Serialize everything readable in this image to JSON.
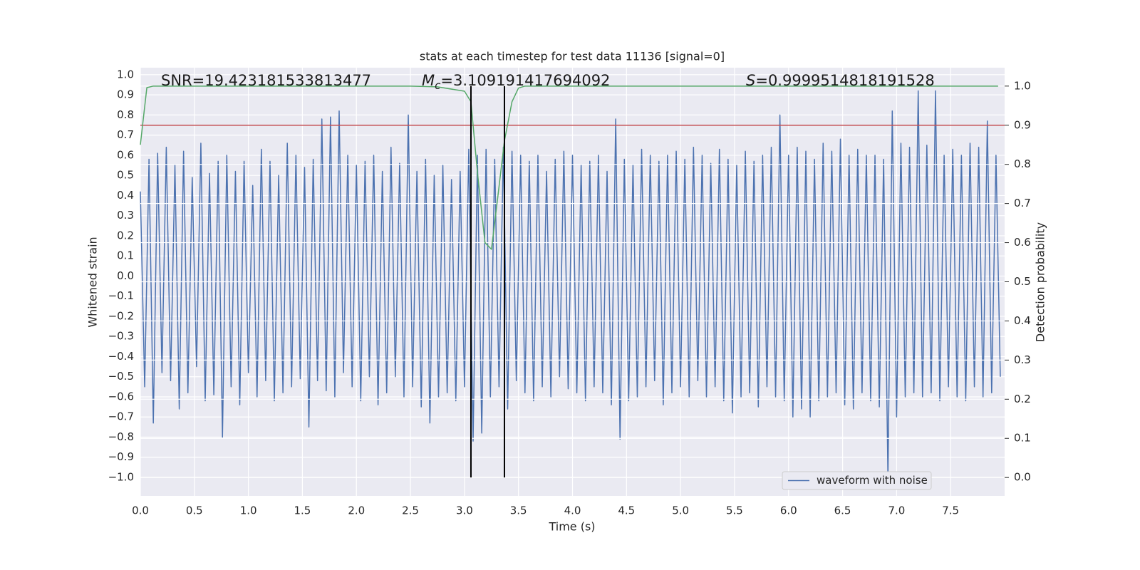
{
  "chart_data": {
    "type": "line",
    "title": "stats at each timestep for test data 11136 [signal=0]",
    "xlabel": "Time (s)",
    "ylabel": "Whitened strain",
    "y2label": "Detection probability",
    "xlim": [
      0,
      8
    ],
    "ylim": [
      -1.092,
      1.035
    ],
    "y2lim": [
      -0.047,
      1.047
    ],
    "xticks": [
      {
        "value": 0,
        "label": "0.0"
      },
      0.5,
      {
        "value": 1,
        "label": "1.0"
      },
      1.5,
      {
        "value": 2,
        "label": "2.0"
      },
      2.5,
      {
        "value": 3,
        "label": "3.0"
      },
      3.5,
      {
        "value": 4,
        "label": "4.0"
      },
      4.5,
      {
        "value": 5,
        "label": "5.0"
      },
      5.5,
      {
        "value": 6,
        "label": "6.0"
      },
      6.5,
      {
        "value": 7,
        "label": "7.0"
      },
      7.5
    ],
    "yticks": [
      {
        "value": 1,
        "label": "1.0"
      },
      0.9,
      0.8,
      0.7,
      0.6,
      0.5,
      0.4,
      0.3,
      0.2,
      0.1,
      {
        "value": 0,
        "label": "0.0"
      },
      {
        "value": -0.1,
        "label": "−0.1"
      },
      {
        "value": -0.2,
        "label": "−0.2"
      },
      {
        "value": -0.3,
        "label": "−0.3"
      },
      {
        "value": -0.4,
        "label": "−0.4"
      },
      {
        "value": -0.5,
        "label": "−0.5"
      },
      {
        "value": -0.6,
        "label": "−0.6"
      },
      {
        "value": -0.7,
        "label": "−0.7"
      },
      {
        "value": -0.8,
        "label": "−0.8"
      },
      {
        "value": -0.9,
        "label": "−0.9"
      },
      {
        "value": -1,
        "label": "−1.0"
      }
    ],
    "y2ticks": [
      {
        "value": 0,
        "label": "0.0"
      },
      0.1,
      0.2,
      0.3,
      0.4,
      0.5,
      0.6,
      0.7,
      0.8,
      0.9,
      {
        "value": 1,
        "label": "1.0"
      }
    ],
    "grid": true,
    "legend": "lower right",
    "series": [
      {
        "name": "waveform with noise",
        "color": "#4c72b0",
        "x": [
          0,
          0.04,
          0.08,
          0.12,
          0.16,
          0.2,
          0.24,
          0.28,
          0.32,
          0.36,
          0.4,
          0.44,
          0.48,
          0.52,
          0.56,
          0.6,
          0.64,
          0.68,
          0.72,
          0.76,
          0.8,
          0.84,
          0.88,
          0.92,
          0.96,
          1,
          1.04,
          1.08,
          1.12,
          1.16,
          1.2,
          1.24,
          1.28,
          1.32,
          1.36,
          1.4,
          1.44,
          1.48,
          1.52,
          1.56,
          1.6,
          1.64,
          1.68,
          1.72,
          1.76,
          1.8,
          1.84,
          1.88,
          1.92,
          1.96,
          2,
          2.04,
          2.08,
          2.12,
          2.16,
          2.2,
          2.24,
          2.28,
          2.32,
          2.36,
          2.4,
          2.44,
          2.48,
          2.52,
          2.56,
          2.6,
          2.64,
          2.68,
          2.72,
          2.76,
          2.8,
          2.84,
          2.88,
          2.92,
          2.96,
          3,
          3.04,
          3.08,
          3.12,
          3.16,
          3.2,
          3.24,
          3.28,
          3.32,
          3.36,
          3.4,
          3.44,
          3.48,
          3.52,
          3.56,
          3.6,
          3.64,
          3.68,
          3.72,
          3.76,
          3.8,
          3.84,
          3.88,
          3.92,
          3.96,
          4,
          4.04,
          4.08,
          4.12,
          4.16,
          4.2,
          4.24,
          4.28,
          4.32,
          4.36,
          4.4,
          4.44,
          4.48,
          4.52,
          4.56,
          4.6,
          4.64,
          4.68,
          4.72,
          4.76,
          4.8,
          4.84,
          4.88,
          4.92,
          4.96,
          5,
          5.04,
          5.08,
          5.12,
          5.16,
          5.2,
          5.24,
          5.28,
          5.32,
          5.36,
          5.4,
          5.44,
          5.48,
          5.52,
          5.56,
          5.6,
          5.64,
          5.68,
          5.72,
          5.76,
          5.8,
          5.84,
          5.88,
          5.92,
          5.96,
          6,
          6.04,
          6.08,
          6.12,
          6.16,
          6.2,
          6.24,
          6.28,
          6.32,
          6.36,
          6.4,
          6.44,
          6.48,
          6.52,
          6.56,
          6.6,
          6.64,
          6.68,
          6.72,
          6.76,
          6.8,
          6.84,
          6.88,
          6.92,
          6.96,
          7,
          7.04,
          7.08,
          7.12,
          7.16,
          7.2,
          7.24,
          7.28,
          7.32,
          7.36,
          7.4,
          7.44,
          7.48,
          7.52,
          7.56,
          7.6,
          7.64,
          7.68,
          7.72,
          7.76,
          7.8,
          7.84,
          7.88,
          7.92,
          7.96
        ],
        "values": [
          0.42,
          -0.55,
          0.58,
          -0.73,
          0.61,
          -0.48,
          0.64,
          -0.52,
          0.55,
          -0.66,
          0.62,
          -0.58,
          0.49,
          -0.45,
          0.66,
          -0.62,
          0.51,
          -0.59,
          0.57,
          -0.8,
          0.6,
          -0.55,
          0.52,
          -0.64,
          0.57,
          -0.48,
          0.45,
          -0.6,
          0.63,
          -0.52,
          0.57,
          -0.62,
          0.5,
          -0.58,
          0.66,
          -0.55,
          0.6,
          -0.51,
          0.54,
          -0.75,
          0.58,
          -0.52,
          0.78,
          -0.57,
          0.79,
          -0.6,
          0.82,
          -0.48,
          0.6,
          -0.55,
          0.55,
          -0.62,
          0.57,
          -0.5,
          0.6,
          -0.64,
          0.52,
          -0.58,
          0.64,
          -0.5,
          0.56,
          -0.6,
          0.8,
          -0.55,
          0.52,
          -0.65,
          0.58,
          -0.73,
          0.5,
          -0.6,
          0.55,
          -0.58,
          0.48,
          -0.62,
          0.52,
          -0.55,
          0.63,
          -0.82,
          0.6,
          -0.78,
          0.63,
          -0.6,
          0.58,
          -0.55,
          0.64,
          -0.66,
          0.62,
          -0.52,
          0.6,
          -0.58,
          0.57,
          -0.62,
          0.6,
          -0.55,
          0.52,
          -0.6,
          0.58,
          -0.5,
          0.62,
          -0.56,
          0.6,
          -0.58,
          0.55,
          -0.62,
          0.57,
          -0.55,
          0.6,
          -0.58,
          0.52,
          -0.64,
          0.78,
          -0.81,
          0.58,
          -0.62,
          0.55,
          -0.6,
          0.63,
          -0.55,
          0.6,
          -0.52,
          0.57,
          -0.64,
          0.6,
          -0.58,
          0.62,
          -0.55,
          0.58,
          -0.6,
          0.64,
          -0.52,
          0.6,
          -0.6,
          0.56,
          -0.55,
          0.63,
          -0.62,
          0.58,
          -0.68,
          0.55,
          -0.6,
          0.62,
          -0.58,
          0.57,
          -0.65,
          0.6,
          -0.55,
          0.64,
          -0.6,
          0.8,
          -0.62,
          0.6,
          -0.7,
          0.64,
          -0.66,
          0.62,
          -0.7,
          0.58,
          -0.62,
          0.66,
          -0.6,
          0.62,
          -0.58,
          0.68,
          -0.64,
          0.6,
          -0.66,
          0.63,
          -0.58,
          0.6,
          -0.62,
          0.6,
          -0.65,
          0.58,
          -1.0,
          0.82,
          -0.7,
          0.66,
          -0.6,
          0.64,
          -0.58,
          0.92,
          -0.6,
          0.65,
          -0.58,
          0.92,
          -0.62,
          0.6,
          -0.55,
          0.63,
          -0.6,
          0.6,
          -0.62,
          0.66,
          -0.55,
          0.64,
          -0.6,
          0.77,
          -0.58,
          0.6,
          -0.5
        ]
      },
      {
        "color": "#55a868",
        "axis": "y2",
        "x": [
          0,
          0.06,
          0.12,
          2.5,
          2.75,
          3.0,
          3.06,
          3.12,
          3.19,
          3.25,
          3.31,
          3.37,
          3.44,
          3.5,
          3.56,
          7.94
        ],
        "values": [
          0.85,
          0.996,
          1.0,
          1.0,
          0.998,
          0.987,
          0.96,
          0.78,
          0.6,
          0.583,
          0.72,
          0.86,
          0.96,
          0.995,
          1.0,
          1.0
        ]
      }
    ],
    "hlines": [
      {
        "y": 0.9,
        "axis": "y2",
        "color": "#c44e52"
      }
    ],
    "vlines": {
      "x": [
        3.06,
        3.37
      ],
      "ymin": 0,
      "ymax": 1,
      "axis": "y2",
      "color": "#000000"
    },
    "annotations": [
      {
        "text": "SNR=19.423181533813477"
      },
      {
        "symbol": "M",
        "subscript": "c",
        "text": "=3.109191417694092"
      },
      {
        "symbol": "S",
        "text": "=0.9999514818191528"
      }
    ]
  }
}
